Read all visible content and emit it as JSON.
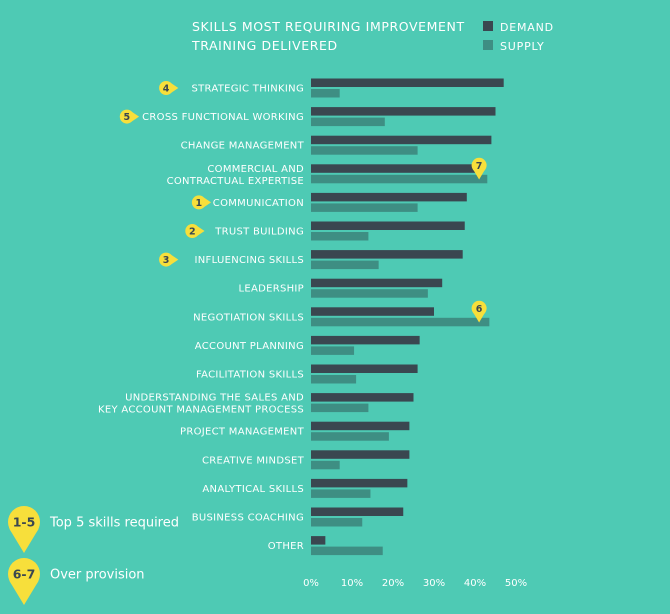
{
  "chart_data": {
    "type": "bar",
    "orientation": "horizontal",
    "title_lines": [
      "SKILLS MOST REQUIRING IMPROVEMENT",
      "TRAINING DELIVERED"
    ],
    "categories": [
      [
        "STRATEGIC THINKING"
      ],
      [
        "CROSS FUNCTIONAL WORKING"
      ],
      [
        "CHANGE MANAGEMENT"
      ],
      [
        "COMMERCIAL AND",
        "CONTRACTUAL EXPERTISE"
      ],
      [
        "COMMUNICATION"
      ],
      [
        "TRUST BUILDING"
      ],
      [
        "INFLUENCING SKILLS"
      ],
      [
        "LEADERSHIP"
      ],
      [
        "NEGOTIATION SKILLS"
      ],
      [
        "ACCOUNT PLANNING"
      ],
      [
        "FACILITATION SKILLS"
      ],
      [
        "UNDERSTANDING THE SALES AND",
        "KEY ACCOUNT MANAGEMENT PROCESS"
      ],
      [
        "PROJECT MANAGEMENT"
      ],
      [
        "CREATIVE MINDSET"
      ],
      [
        "ANALYTICAL SKILLS"
      ],
      [
        "BUSINESS COACHING"
      ],
      [
        "OTHER"
      ]
    ],
    "series": [
      {
        "name": "DEMAND",
        "color": "#3a4750",
        "values": [
          47,
          45,
          44,
          40,
          38,
          37.5,
          37,
          32,
          30,
          26.5,
          26,
          25,
          24,
          24,
          23.5,
          22.5,
          3.5
        ]
      },
      {
        "name": "SUPPLY",
        "color": "#3e8e83",
        "values": [
          7,
          18,
          26,
          43,
          26,
          14,
          16.5,
          28.5,
          43.5,
          10.5,
          11,
          14,
          19,
          7,
          14.5,
          12.5,
          17.5
        ]
      }
    ],
    "xlim": [
      0,
      50
    ],
    "xticks": [
      "0%",
      "10%",
      "20%",
      "30%",
      "40%",
      "50%"
    ],
    "legend_position": "top-right",
    "badges": [
      {
        "label": "1",
        "category_index": 4,
        "placement": "left"
      },
      {
        "label": "2",
        "category_index": 5,
        "placement": "left"
      },
      {
        "label": "3",
        "category_index": 6,
        "placement": "left"
      },
      {
        "label": "4",
        "category_index": 0,
        "placement": "left"
      },
      {
        "label": "5",
        "category_index": 1,
        "placement": "left"
      },
      {
        "label": "7",
        "category_index": 3,
        "placement": "bar-end",
        "value": 41
      },
      {
        "label": "6",
        "category_index": 8,
        "placement": "bar-end",
        "value": 41
      }
    ],
    "key": [
      {
        "label": "1-5",
        "text": "Top 5 skills required"
      },
      {
        "label": "6-7",
        "text": "Over provision"
      }
    ],
    "badge_color": "#f7df3b"
  }
}
